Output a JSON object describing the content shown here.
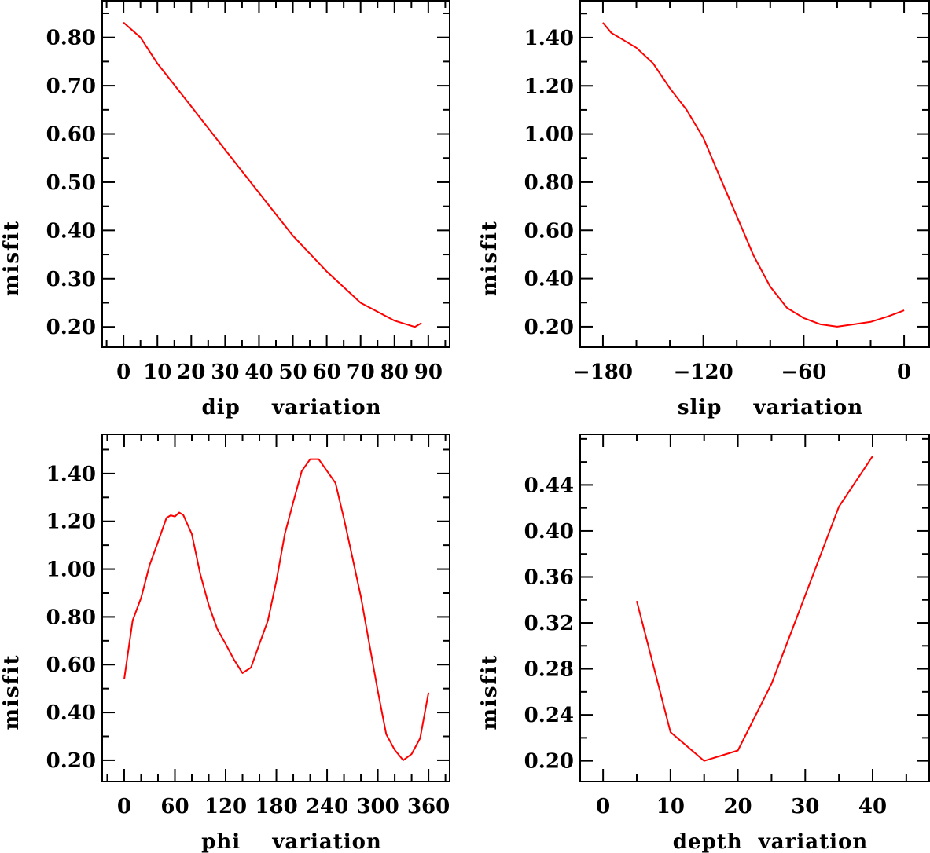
{
  "chart_data": [
    {
      "type": "line",
      "xlabel": "dip    variation",
      "ylabel": "misfit",
      "xlim": [
        -6.3,
        96.3
      ],
      "ylim": [
        0.158,
        0.876
      ],
      "xticks": [
        0,
        10,
        20,
        30,
        40,
        50,
        60,
        70,
        80,
        90
      ],
      "xtick_labels": [
        "0",
        "10",
        "20",
        "30",
        "40",
        "50",
        "60",
        "70",
        "80",
        "90"
      ],
      "x_minor": 5,
      "yticks": [
        0.2,
        0.3,
        0.4,
        0.5,
        0.6,
        0.7,
        0.8
      ],
      "ytick_labels": [
        "0.20",
        "0.30",
        "0.40",
        "0.50",
        "0.60",
        "0.70",
        "0.80"
      ],
      "y_minor": 0.05,
      "color": "#ff0000",
      "x": [
        0,
        5,
        10,
        20,
        30,
        40,
        50,
        60,
        70,
        80,
        86,
        88
      ],
      "y": [
        0.831,
        0.8,
        0.746,
        0.657,
        0.567,
        0.478,
        0.389,
        0.315,
        0.25,
        0.213,
        0.2,
        0.208
      ]
    },
    {
      "type": "line",
      "xlabel": "slip    variation",
      "ylabel": "misfit",
      "xlim": [
        -193.6,
        15
      ],
      "ylim": [
        0.115,
        1.553
      ],
      "xticks": [
        -180,
        -120,
        -60,
        0
      ],
      "xtick_labels": [
        "−180",
        "−120",
        "−60",
        "0"
      ],
      "x_minor": 20,
      "yticks": [
        0.2,
        0.4,
        0.6,
        0.8,
        1.0,
        1.2,
        1.4
      ],
      "ytick_labels": [
        "0.20",
        "0.40",
        "0.60",
        "0.80",
        "1.00",
        "1.20",
        "1.40"
      ],
      "y_minor": 0.1,
      "color": "#ff0000",
      "x": [
        -180,
        -175,
        -160,
        -150,
        -140,
        -130,
        -120,
        -110,
        -100,
        -90,
        -80,
        -70,
        -60,
        -50,
        -40,
        -30,
        -20,
        -10,
        0
      ],
      "y": [
        1.462,
        1.42,
        1.358,
        1.293,
        1.19,
        1.1,
        0.984,
        0.82,
        0.659,
        0.496,
        0.366,
        0.278,
        0.236,
        0.21,
        0.2,
        0.21,
        0.22,
        0.242,
        0.268
      ]
    },
    {
      "type": "line",
      "xlabel": "phi    variation",
      "ylabel": "misfit",
      "xlim": [
        -26,
        385
      ],
      "ylim": [
        0.111,
        1.564
      ],
      "xticks": [
        0,
        60,
        120,
        180,
        240,
        300,
        360
      ],
      "xtick_labels": [
        "0",
        "60",
        "120",
        "180",
        "240",
        "300",
        "360"
      ],
      "x_minor": 20,
      "yticks": [
        0.2,
        0.4,
        0.6,
        0.8,
        1.0,
        1.2,
        1.4
      ],
      "ytick_labels": [
        "0.20",
        "0.40",
        "0.60",
        "0.80",
        "1.00",
        "1.20",
        "1.40"
      ],
      "y_minor": 0.1,
      "color": "#ff0000",
      "x": [
        0,
        10,
        20,
        30,
        40,
        50,
        55,
        60,
        65,
        70,
        80,
        90,
        100,
        110,
        120,
        130,
        140,
        150,
        160,
        170,
        180,
        190,
        200,
        210,
        220,
        230,
        240,
        250,
        260,
        270,
        280,
        290,
        300,
        310,
        320,
        330,
        340,
        350,
        360
      ],
      "y": [
        0.539,
        0.785,
        0.88,
        1.016,
        1.114,
        1.214,
        1.225,
        1.22,
        1.237,
        1.226,
        1.147,
        0.98,
        0.85,
        0.75,
        0.687,
        0.62,
        0.565,
        0.588,
        0.687,
        0.785,
        0.95,
        1.147,
        1.28,
        1.41,
        1.46,
        1.46,
        1.41,
        1.36,
        1.21,
        1.049,
        0.884,
        0.687,
        0.49,
        0.309,
        0.243,
        0.2,
        0.226,
        0.292,
        0.483
      ]
    },
    {
      "type": "line",
      "xlabel": "depth  variation",
      "ylabel": "misfit",
      "xlim": [
        -3.4,
        48.4
      ],
      "ylim": [
        0.182,
        0.484
      ],
      "xticks": [
        0,
        10,
        20,
        30,
        40
      ],
      "xtick_labels": [
        "0",
        "10",
        "20",
        "30",
        "40"
      ],
      "x_minor": 5,
      "yticks": [
        0.2,
        0.24,
        0.28,
        0.32,
        0.36,
        0.4,
        0.44
      ],
      "ytick_labels": [
        "0.20",
        "0.24",
        "0.28",
        "0.32",
        "0.36",
        "0.40",
        "0.44"
      ],
      "y_minor": 0.02,
      "color": "#ff0000",
      "x": [
        5,
        10,
        15,
        20,
        25,
        30,
        35,
        40
      ],
      "y": [
        0.339,
        0.225,
        0.2,
        0.209,
        0.267,
        0.344,
        0.421,
        0.465
      ]
    }
  ]
}
